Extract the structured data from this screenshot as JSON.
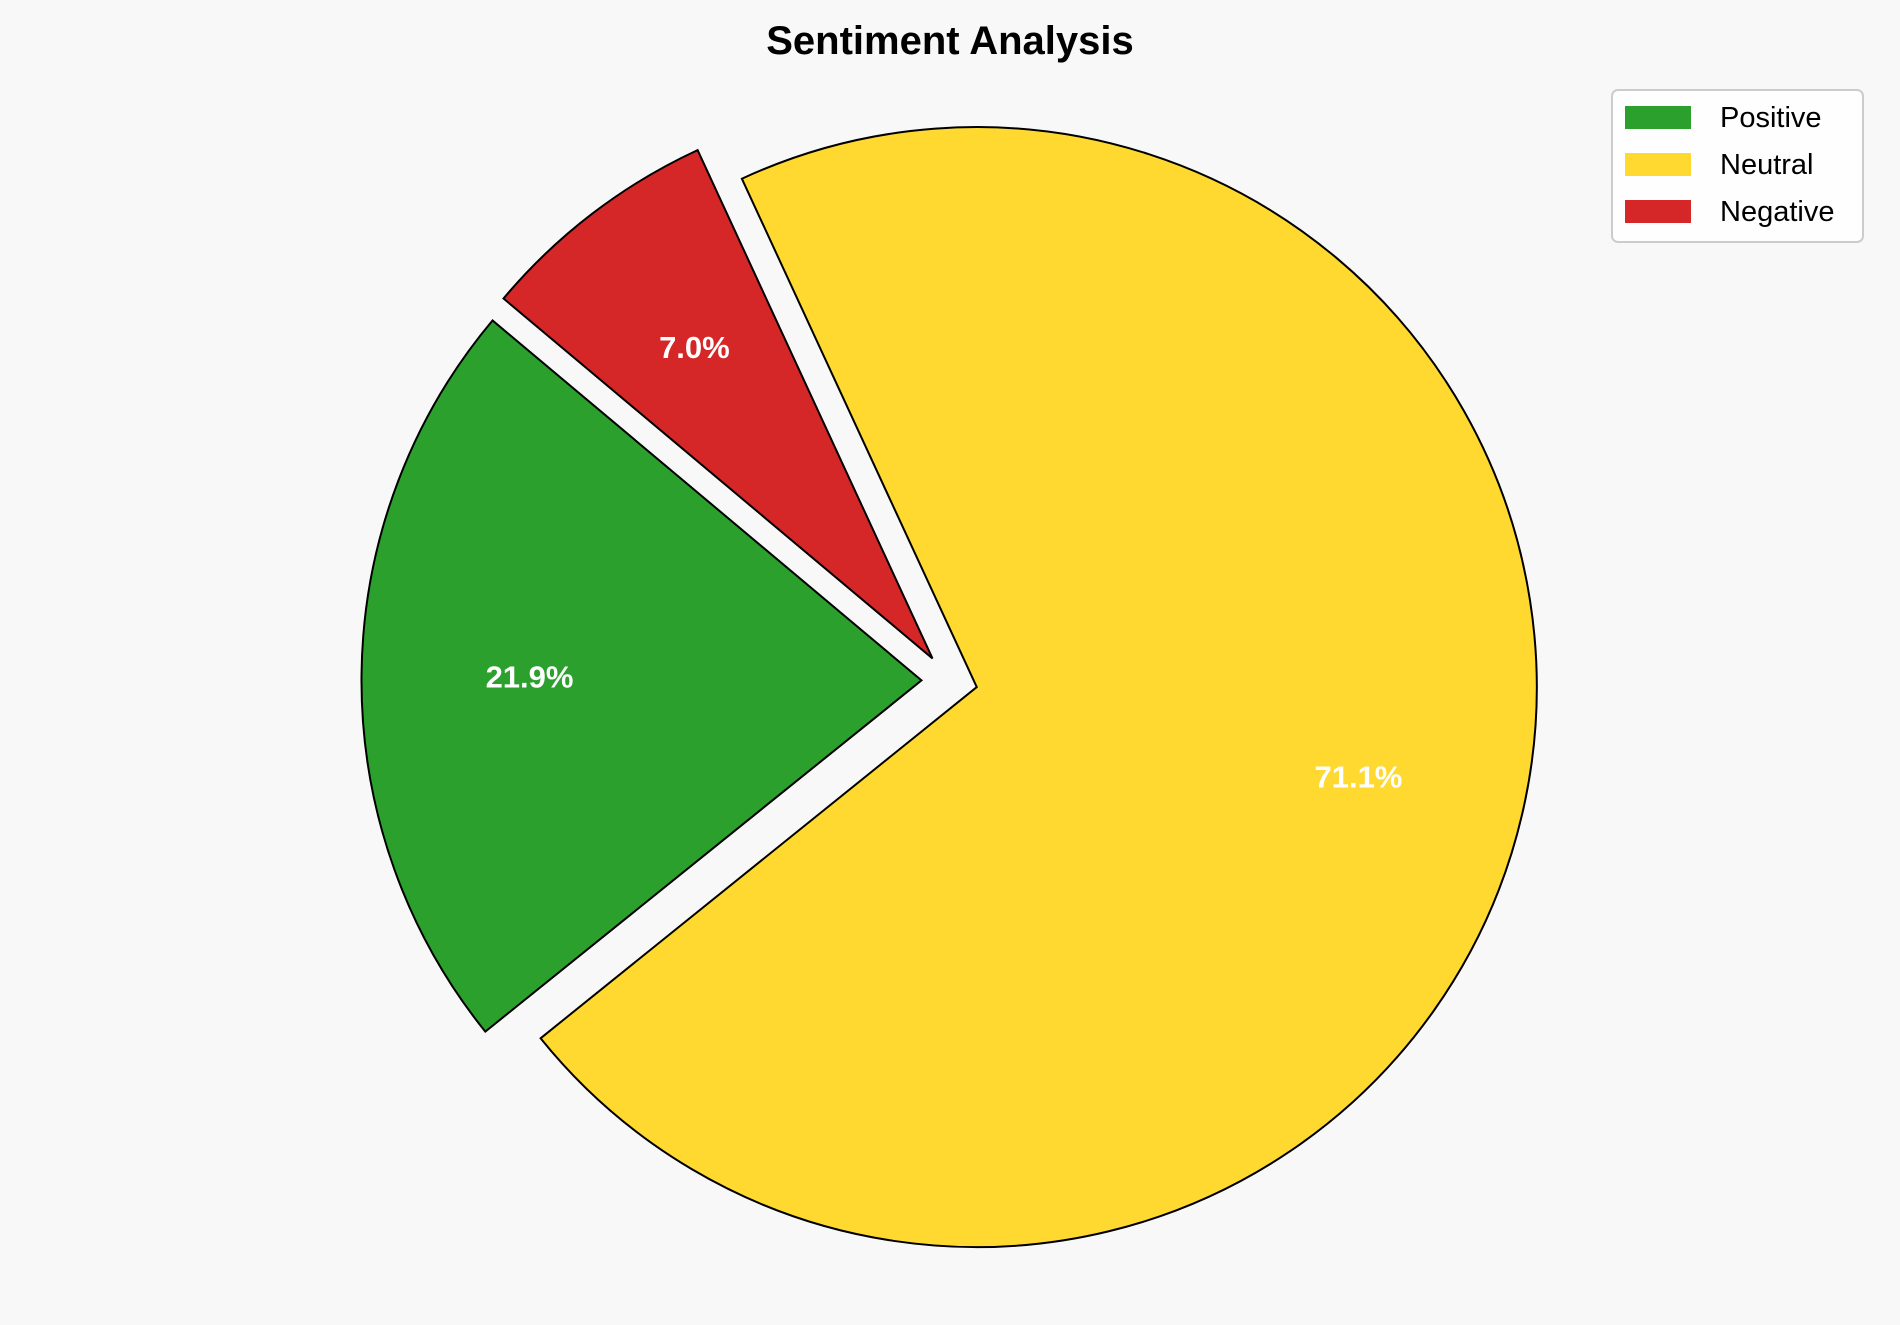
{
  "chart_data": {
    "type": "pie",
    "title": "Sentiment Analysis",
    "categories": [
      "Positive",
      "Neutral",
      "Negative"
    ],
    "values": [
      21.9,
      71.1,
      7.0
    ],
    "value_labels": [
      "21.9%",
      "71.1%",
      "7.0%"
    ],
    "colors": [
      "#2ca02c",
      "#ffd92f",
      "#d62728"
    ],
    "start_angle": 140,
    "explode": [
      0.05,
      0.05,
      0.05
    ],
    "legend": "top-right",
    "edge_color": "#000000"
  }
}
